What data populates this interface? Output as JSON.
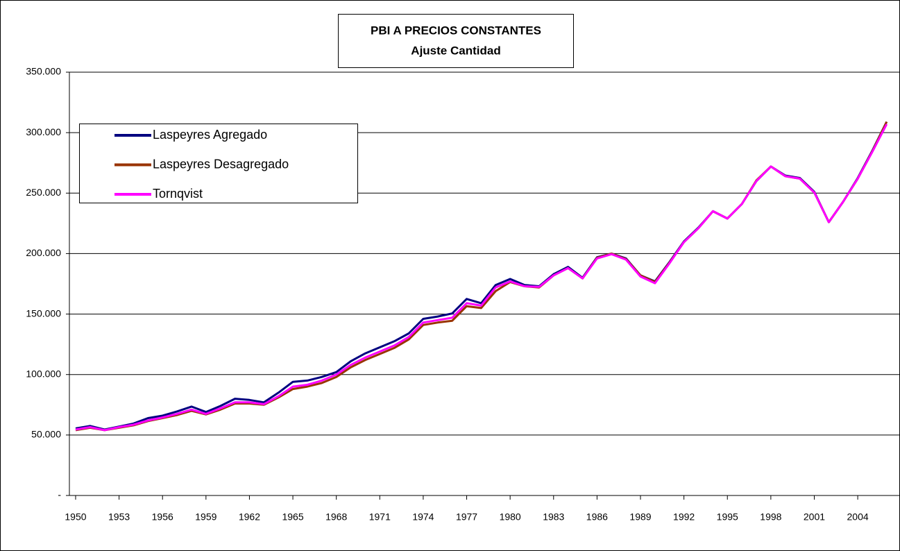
{
  "chart_data": {
    "type": "line",
    "title": "PBI A PRECIOS CONSTANTES",
    "subtitle": "Ajuste Cantidad",
    "x": [
      1950,
      1951,
      1952,
      1953,
      1954,
      1955,
      1956,
      1957,
      1958,
      1959,
      1960,
      1961,
      1962,
      1963,
      1964,
      1965,
      1966,
      1967,
      1968,
      1969,
      1970,
      1971,
      1972,
      1973,
      1974,
      1975,
      1976,
      1977,
      1978,
      1979,
      1980,
      1981,
      1982,
      1983,
      1984,
      1985,
      1986,
      1987,
      1988,
      1989,
      1990,
      1991,
      1992,
      1993,
      1994,
      1995,
      1996,
      1997,
      1998,
      1999,
      2000,
      2001,
      2002,
      2003,
      2004,
      2005,
      2006
    ],
    "xlim": [
      1949.57,
      2006.87
    ],
    "xticks": [
      1950,
      1953,
      1956,
      1959,
      1962,
      1965,
      1968,
      1971,
      1974,
      1977,
      1980,
      1983,
      1986,
      1989,
      1992,
      1995,
      1998,
      2001,
      2004
    ],
    "ylim": [
      0,
      350000
    ],
    "yticks": [
      {
        "value": 0,
        "label": "-"
      },
      {
        "value": 50000,
        "label": "50.000"
      },
      {
        "value": 100000,
        "label": "100.000"
      },
      {
        "value": 150000,
        "label": "150.000"
      },
      {
        "value": 200000,
        "label": "200.000"
      },
      {
        "value": 250000,
        "label": "250.000"
      },
      {
        "value": 300000,
        "label": "300.000"
      },
      {
        "value": 350000,
        "label": "350.000"
      }
    ],
    "grid": true,
    "legend": "upper left",
    "series": [
      {
        "name": "Laspeyres Agregado",
        "color": "#000080",
        "values": [
          55500,
          57500,
          54500,
          57000,
          59500,
          64000,
          66000,
          69500,
          73500,
          69000,
          74000,
          80000,
          79000,
          77000,
          85000,
          94000,
          95000,
          98000,
          102000,
          111000,
          117500,
          122500,
          127500,
          134000,
          146000,
          148000,
          150500,
          162500,
          159000,
          174000,
          179000,
          174000,
          173000,
          183000,
          189000,
          180000,
          197000,
          200000,
          196000,
          182000,
          177000,
          193000,
          210000,
          221500,
          235000,
          229000,
          241000,
          260000,
          272000,
          264500,
          262500,
          251000,
          226000,
          243000,
          262500,
          285000,
          309000
        ]
      },
      {
        "name": "Laspeyres Desagregado",
        "color": "#993300",
        "values": [
          54000,
          56000,
          54000,
          56000,
          58000,
          61500,
          64000,
          66500,
          70000,
          67000,
          71000,
          76000,
          76000,
          75000,
          81000,
          88000,
          90000,
          93000,
          98000,
          106000,
          112000,
          117000,
          122000,
          129000,
          141000,
          143000,
          144500,
          156500,
          155000,
          169000,
          176500,
          173000,
          172000,
          182000,
          188000,
          179500,
          196500,
          200000,
          195500,
          182000,
          176500,
          192500,
          209500,
          221000,
          235000,
          229000,
          241000,
          260500,
          272000,
          264000,
          262000,
          250500,
          226000,
          243000,
          262000,
          284500,
          309000
        ]
      },
      {
        "name": "Tornqvist",
        "color": "#ff00ff",
        "values": [
          54500,
          56500,
          54000,
          56500,
          58500,
          62000,
          64500,
          67500,
          71000,
          67500,
          72000,
          77000,
          77000,
          75500,
          82000,
          90000,
          91500,
          95000,
          100000,
          108000,
          114000,
          119000,
          124000,
          131000,
          143000,
          145000,
          147000,
          159000,
          157000,
          172000,
          177000,
          173000,
          172500,
          182000,
          188000,
          179500,
          196000,
          199500,
          195000,
          181000,
          175500,
          192000,
          209500,
          221000,
          235000,
          229000,
          241000,
          260000,
          272000,
          264000,
          262000,
          250500,
          226000,
          243000,
          262000,
          284000,
          307000
        ]
      }
    ]
  }
}
